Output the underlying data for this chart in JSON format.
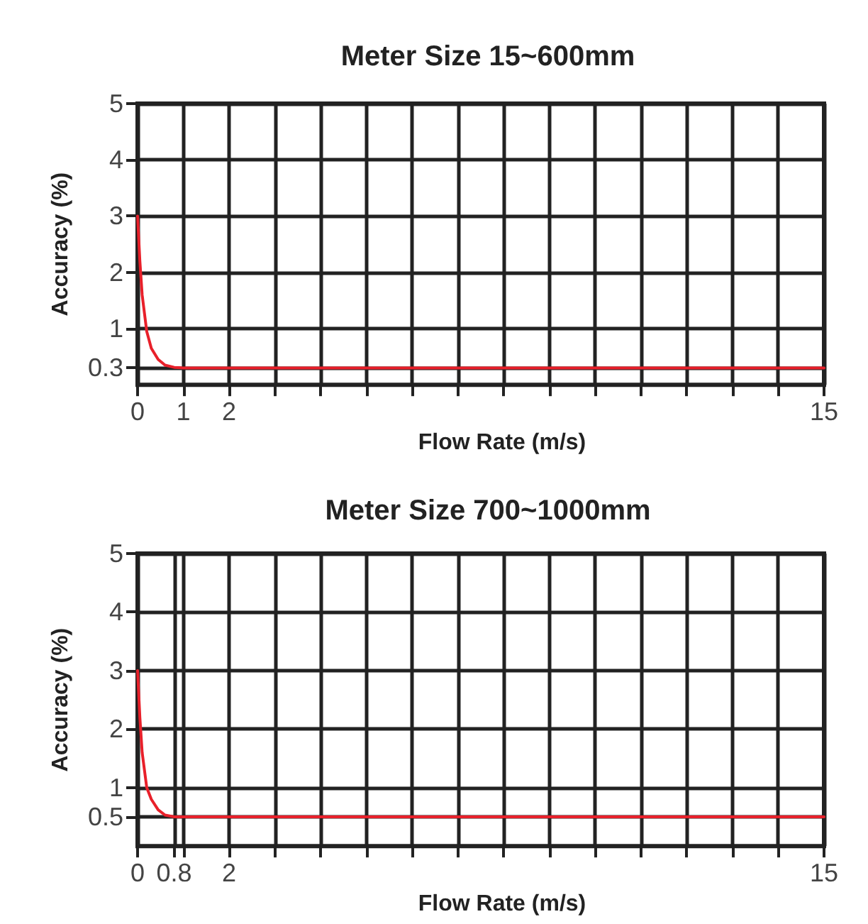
{
  "chart_data": [
    {
      "type": "line",
      "title": "Meter Size 15~600mm",
      "xlabel": "Flow Rate (m/s)",
      "ylabel": "Accuracy (%)",
      "series": [
        {
          "color": "#e8202a",
          "x": [
            0,
            0.05,
            0.1,
            0.2,
            0.3,
            0.45,
            0.6,
            0.8,
            1,
            15
          ],
          "values": [
            3,
            2.2,
            1.6,
            0.95,
            0.65,
            0.45,
            0.35,
            0.31,
            0.3,
            0.3
          ]
        }
      ],
      "xlim": [
        0,
        15
      ],
      "xticks": [
        0,
        1,
        2,
        {
          "value": 3,
          "label": null
        },
        {
          "value": 4,
          "label": null
        },
        {
          "value": 5,
          "label": null
        },
        {
          "value": 6,
          "label": null
        },
        {
          "value": 7,
          "label": null
        },
        {
          "value": 8,
          "label": null
        },
        {
          "value": 9,
          "label": null
        },
        {
          "value": 10,
          "label": null
        },
        {
          "value": 11,
          "label": null
        },
        {
          "value": 12,
          "label": null
        },
        {
          "value": 13,
          "label": null
        },
        {
          "value": 14,
          "label": null
        },
        15
      ],
      "ylim": [
        0,
        5
      ],
      "yticks": [
        0.3,
        1,
        2,
        3,
        4,
        5
      ],
      "grid": true,
      "marker": "none",
      "line_style": "solid"
    },
    {
      "type": "line",
      "title": "Meter Size 700~1000mm",
      "xlabel": "Flow Rate (m/s)",
      "ylabel": "Accuracy (%)",
      "series": [
        {
          "color": "#e8202a",
          "x": [
            0,
            0.05,
            0.1,
            0.2,
            0.3,
            0.45,
            0.6,
            0.8,
            15
          ],
          "values": [
            3,
            2.2,
            1.6,
            1.0,
            0.8,
            0.62,
            0.53,
            0.5,
            0.5
          ]
        }
      ],
      "xlim": [
        0,
        15
      ],
      "xticks": [
        0,
        0.8,
        {
          "value": 1,
          "label": null
        },
        2,
        {
          "value": 3,
          "label": null
        },
        {
          "value": 4,
          "label": null
        },
        {
          "value": 5,
          "label": null
        },
        {
          "value": 6,
          "label": null
        },
        {
          "value": 7,
          "label": null
        },
        {
          "value": 8,
          "label": null
        },
        {
          "value": 9,
          "label": null
        },
        {
          "value": 10,
          "label": null
        },
        {
          "value": 11,
          "label": null
        },
        {
          "value": 12,
          "label": null
        },
        {
          "value": 13,
          "label": null
        },
        {
          "value": 14,
          "label": null
        },
        15
      ],
      "ylim": [
        0,
        5
      ],
      "yticks": [
        0.5,
        1,
        2,
        3,
        4,
        5
      ],
      "grid": true,
      "marker": "none",
      "line_style": "solid"
    }
  ]
}
